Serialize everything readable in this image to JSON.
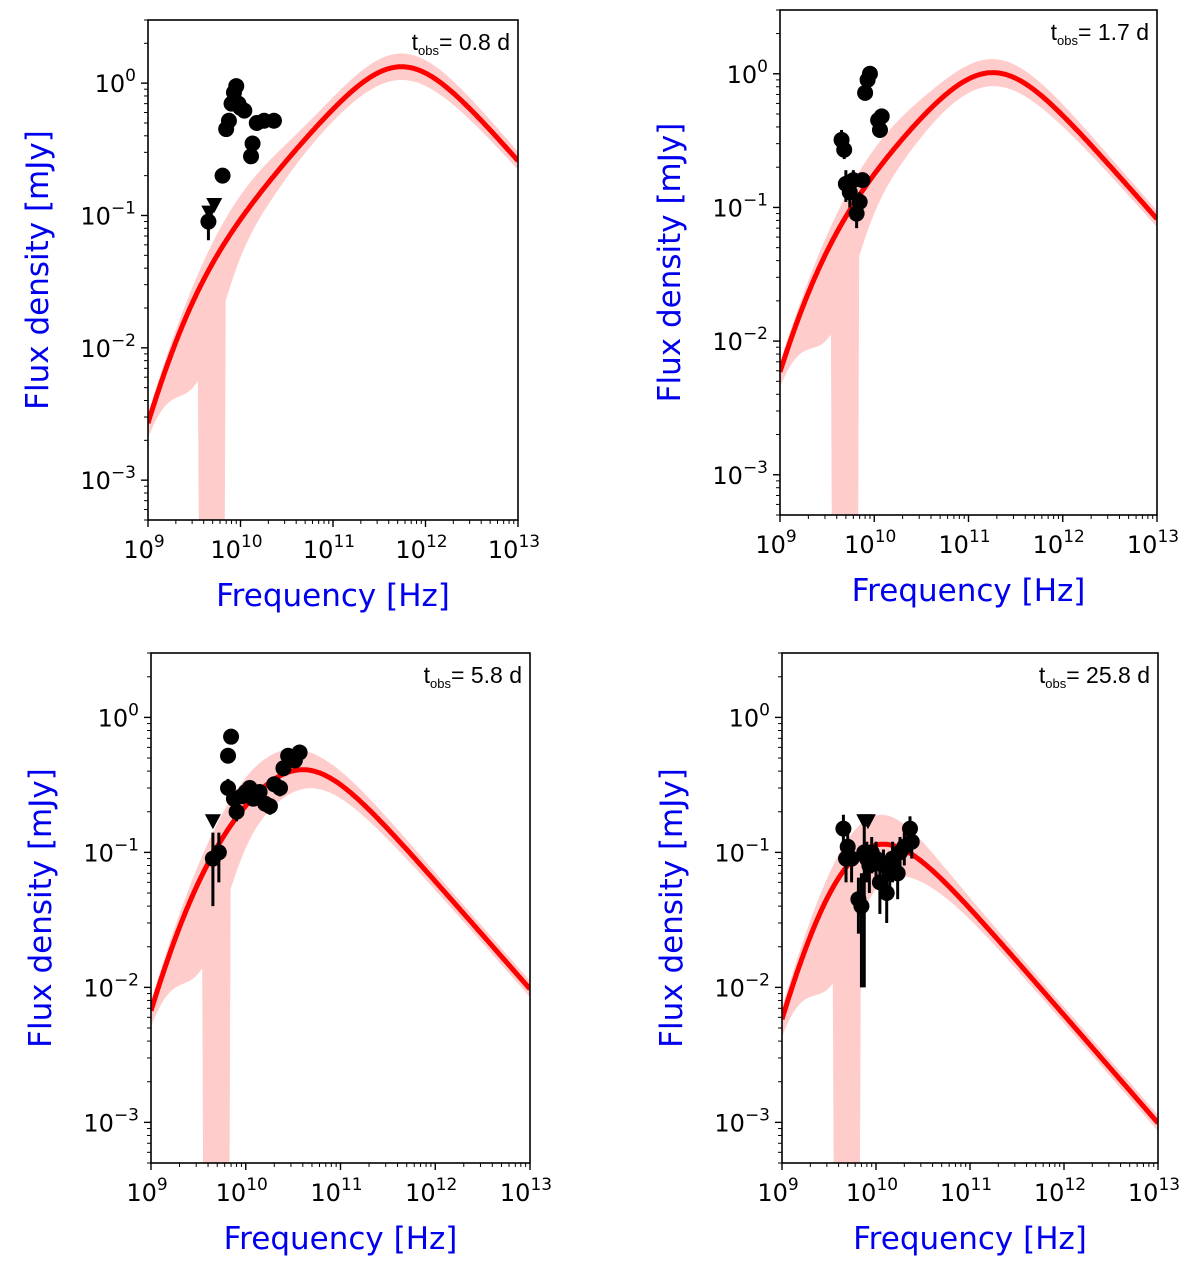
{
  "figure": {
    "xlabel": "Frequency [Hz]",
    "ylabel": "Flux density [mJy]",
    "x_tick_labels": [
      "10^9",
      "10^10",
      "10^11",
      "10^12",
      "10^13"
    ],
    "y_tick_labels": [
      "10^-3",
      "10^-2",
      "10^-1",
      "10^0"
    ],
    "colors": {
      "model_line": "#ff0000",
      "band": "#ffcccc",
      "points": "#000000",
      "axis_label": "#0000ee"
    }
  },
  "chart_data": [
    {
      "type": "line",
      "title": "",
      "annotation": {
        "prefix": "t",
        "subscript": "obs",
        "value": "= 0.8 d"
      },
      "xlabel": "Frequency [Hz]",
      "ylabel": "Flux density [mJy]",
      "xscale": "log",
      "yscale": "log",
      "xlim": [
        1000000000.0,
        10000000000000.0
      ],
      "ylim": [
        0.0005,
        3
      ],
      "model": {
        "peak_freq": 550000000000.0,
        "peak_flux": 1.33,
        "break_freq": 2000000000.0
      },
      "band_notch_hz": [
        4000000000.0,
        6000000000.0
      ],
      "detections": [
        [
          4500000000.0,
          0.09,
          0.025
        ],
        [
          6400000000.0,
          0.2,
          0.02
        ],
        [
          7000000000.0,
          0.45,
          0.05
        ],
        [
          7500000000.0,
          0.52,
          0.05
        ],
        [
          8000000000.0,
          0.7,
          0.07
        ],
        [
          8500000000.0,
          0.85,
          0.08
        ],
        [
          9000000000.0,
          0.95,
          0.08
        ],
        [
          9500000000.0,
          0.7,
          0.07
        ],
        [
          10000000000.0,
          0.65,
          0.06
        ],
        [
          11000000000.0,
          0.62,
          0.06
        ],
        [
          13000000000.0,
          0.28,
          0.03
        ],
        [
          13500000000.0,
          0.35,
          0.04
        ],
        [
          15000000000.0,
          0.5,
          0.05
        ],
        [
          18000000000.0,
          0.52,
          0.05
        ],
        [
          23000000000.0,
          0.52,
          0.05
        ]
      ],
      "upper_limits": [
        [
          4600000000.0,
          0.105
        ],
        [
          5200000000.0,
          0.12
        ]
      ]
    },
    {
      "type": "line",
      "title": "",
      "annotation": {
        "prefix": "t",
        "subscript": "obs",
        "value": "= 1.7 d"
      },
      "xlabel": "Frequency [Hz]",
      "ylabel": "Flux density [mJy]",
      "xscale": "log",
      "yscale": "log",
      "xlim": [
        1000000000.0,
        10000000000000.0
      ],
      "ylim": [
        0.0005,
        3
      ],
      "model": {
        "peak_freq": 180000000000.0,
        "peak_flux": 1.02,
        "break_freq": 1800000000.0
      },
      "band_notch_hz": [
        4000000000.0,
        6000000000.0
      ],
      "detections": [
        [
          4500000000.0,
          0.32,
          0.06
        ],
        [
          4800000000.0,
          0.27,
          0.04
        ],
        [
          5000000000.0,
          0.15,
          0.04
        ],
        [
          5500000000.0,
          0.13,
          0.03
        ],
        [
          6000000000.0,
          0.16,
          0.03
        ],
        [
          6500000000.0,
          0.09,
          0.02
        ],
        [
          7000000000.0,
          0.11,
          0.02
        ],
        [
          7500000000.0,
          0.16,
          0.02
        ],
        [
          8000000000.0,
          0.72,
          0.07
        ],
        [
          8500000000.0,
          0.9,
          0.08
        ],
        [
          9000000000.0,
          1.0,
          0.08
        ],
        [
          11000000000.0,
          0.45,
          0.04
        ],
        [
          11500000000.0,
          0.38,
          0.04
        ],
        [
          12000000000.0,
          0.48,
          0.05
        ]
      ],
      "upper_limits": []
    },
    {
      "type": "line",
      "title": "",
      "annotation": {
        "prefix": "t",
        "subscript": "obs",
        "value": "= 5.8 d"
      },
      "xlabel": "Frequency [Hz]",
      "ylabel": "Flux density [mJy]",
      "xscale": "log",
      "yscale": "log",
      "xlim": [
        1000000000.0,
        10000000000000.0
      ],
      "ylim": [
        0.0005,
        3
      ],
      "model": {
        "peak_freq": 38000000000.0,
        "peak_flux": 0.41,
        "break_freq": 2100000000.0
      },
      "band_notch_hz": [
        4000000000.0,
        6000000000.0
      ],
      "detections": [
        [
          4500000000.0,
          0.09,
          0.05
        ],
        [
          5200000000.0,
          0.1,
          0.04
        ],
        [
          6500000000.0,
          0.3,
          0.05
        ],
        [
          6500000000.0,
          0.52,
          0.05
        ],
        [
          7000000000.0,
          0.72,
          0.06
        ],
        [
          7500000000.0,
          0.25,
          0.04
        ],
        [
          8000000000.0,
          0.2,
          0.03
        ],
        [
          9000000000.0,
          0.26,
          0.03
        ],
        [
          10000000000.0,
          0.28,
          0.03
        ],
        [
          11000000000.0,
          0.3,
          0.03
        ],
        [
          12000000000.0,
          0.25,
          0.03
        ],
        [
          14000000000.0,
          0.28,
          0.03
        ],
        [
          16000000000.0,
          0.23,
          0.03
        ],
        [
          18000000000.0,
          0.22,
          0.03
        ],
        [
          20000000000.0,
          0.32,
          0.04
        ],
        [
          23000000000.0,
          0.3,
          0.04
        ],
        [
          25000000000.0,
          0.42,
          0.05
        ],
        [
          28000000000.0,
          0.52,
          0.05
        ],
        [
          33000000000.0,
          0.48,
          0.05
        ],
        [
          37000000000.0,
          0.55,
          0.05
        ]
      ],
      "upper_limits": [
        [
          4500000000.0,
          0.17
        ]
      ]
    },
    {
      "type": "line",
      "title": "",
      "annotation": {
        "prefix": "t",
        "subscript": "obs",
        "value": "= 25.8 d"
      },
      "xlabel": "Frequency [Hz]",
      "ylabel": "Flux density [mJy]",
      "xscale": "log",
      "yscale": "log",
      "xlim": [
        1000000000.0,
        10000000000000.0
      ],
      "ylim": [
        0.0005,
        3
      ],
      "model": {
        "peak_freq": 9000000000.0,
        "peak_flux": 0.115,
        "break_freq": 2300000000.0
      },
      "band_notch_hz": [
        4000000000.0,
        6000000000.0
      ],
      "detections": [
        [
          4500000000.0,
          0.15,
          0.04
        ],
        [
          4800000000.0,
          0.09,
          0.03
        ],
        [
          5000000000.0,
          0.11,
          0.03
        ],
        [
          5500000000.0,
          0.09,
          0.03
        ],
        [
          6500000000.0,
          0.045,
          0.02
        ],
        [
          7000000000.0,
          0.04,
          0.03
        ],
        [
          7500000000.0,
          0.1,
          0.09
        ],
        [
          8000000000.0,
          0.09,
          0.03
        ],
        [
          8500000000.0,
          0.08,
          0.03
        ],
        [
          9000000000.0,
          0.1,
          0.03
        ],
        [
          10000000000.0,
          0.09,
          0.03
        ],
        [
          11000000000.0,
          0.06,
          0.025
        ],
        [
          12000000000.0,
          0.08,
          0.025
        ],
        [
          13000000000.0,
          0.05,
          0.02
        ],
        [
          14000000000.0,
          0.07,
          0.025
        ],
        [
          15000000000.0,
          0.09,
          0.03
        ],
        [
          17000000000.0,
          0.07,
          0.025
        ],
        [
          18000000000.0,
          0.1,
          0.03
        ],
        [
          20000000000.0,
          0.11,
          0.03
        ],
        [
          23000000000.0,
          0.15,
          0.035
        ],
        [
          24000000000.0,
          0.12,
          0.03
        ]
      ],
      "upper_limits": [
        [
          7500000000.0,
          0.17
        ],
        [
          8200000000.0,
          0.17
        ]
      ]
    }
  ]
}
